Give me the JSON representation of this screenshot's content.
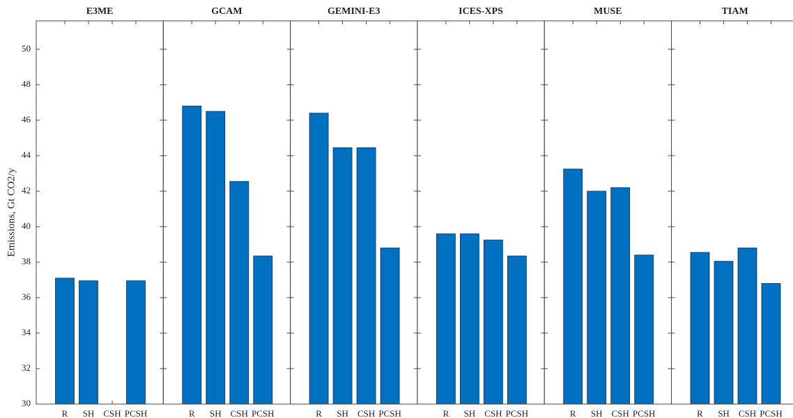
{
  "chart_data": [
    {
      "type": "bar",
      "title": "E3ME",
      "y_label": "Emissions, Gt CO2/y",
      "categories": [
        "R",
        "SH",
        "CSH",
        "PCSH"
      ],
      "values": [
        37.1,
        36.95,
        null,
        36.95
      ],
      "color": "#0070c0",
      "ylim": [
        30,
        51.6
      ],
      "yticks": [
        30,
        32,
        34,
        36,
        38,
        40,
        42,
        44,
        46,
        48,
        50
      ]
    },
    {
      "type": "bar",
      "title": "GCAM",
      "categories": [
        "R",
        "SH",
        "CSH",
        "PCSH"
      ],
      "values": [
        46.8,
        46.5,
        42.55,
        38.35
      ],
      "color": "#0070c0",
      "ylim": [
        30,
        51.6
      ],
      "yticks": [
        30,
        32,
        34,
        36,
        38,
        40,
        42,
        44,
        46,
        48,
        50
      ]
    },
    {
      "type": "bar",
      "title": "GEMINI-E3",
      "categories": [
        "R",
        "SH",
        "CSH",
        "PCSH"
      ],
      "values": [
        46.4,
        44.45,
        44.45,
        38.8
      ],
      "color": "#0070c0",
      "ylim": [
        30,
        51.6
      ],
      "yticks": [
        30,
        32,
        34,
        36,
        38,
        40,
        42,
        44,
        46,
        48,
        50
      ]
    },
    {
      "type": "bar",
      "title": "ICES-XPS",
      "categories": [
        "R",
        "SH",
        "CSH",
        "PCSH"
      ],
      "values": [
        39.6,
        39.6,
        39.25,
        38.35
      ],
      "color": "#0070c0",
      "ylim": [
        30,
        51.6
      ],
      "yticks": [
        30,
        32,
        34,
        36,
        38,
        40,
        42,
        44,
        46,
        48,
        50
      ]
    },
    {
      "type": "bar",
      "title": "MUSE",
      "categories": [
        "R",
        "SH",
        "CSH",
        "PCSH"
      ],
      "values": [
        43.25,
        42.0,
        42.2,
        38.4
      ],
      "color": "#0070c0",
      "ylim": [
        30,
        51.6
      ],
      "yticks": [
        30,
        32,
        34,
        36,
        38,
        40,
        42,
        44,
        46,
        48,
        50
      ]
    },
    {
      "type": "bar",
      "title": "TIAM",
      "categories": [
        "R",
        "SH",
        "CSH",
        "PCSH"
      ],
      "values": [
        38.55,
        38.05,
        38.8,
        36.8
      ],
      "color": "#0070c0",
      "ylim": [
        30,
        51.6
      ],
      "yticks": [
        30,
        32,
        34,
        36,
        38,
        40,
        42,
        44,
        46,
        48,
        50
      ]
    }
  ]
}
